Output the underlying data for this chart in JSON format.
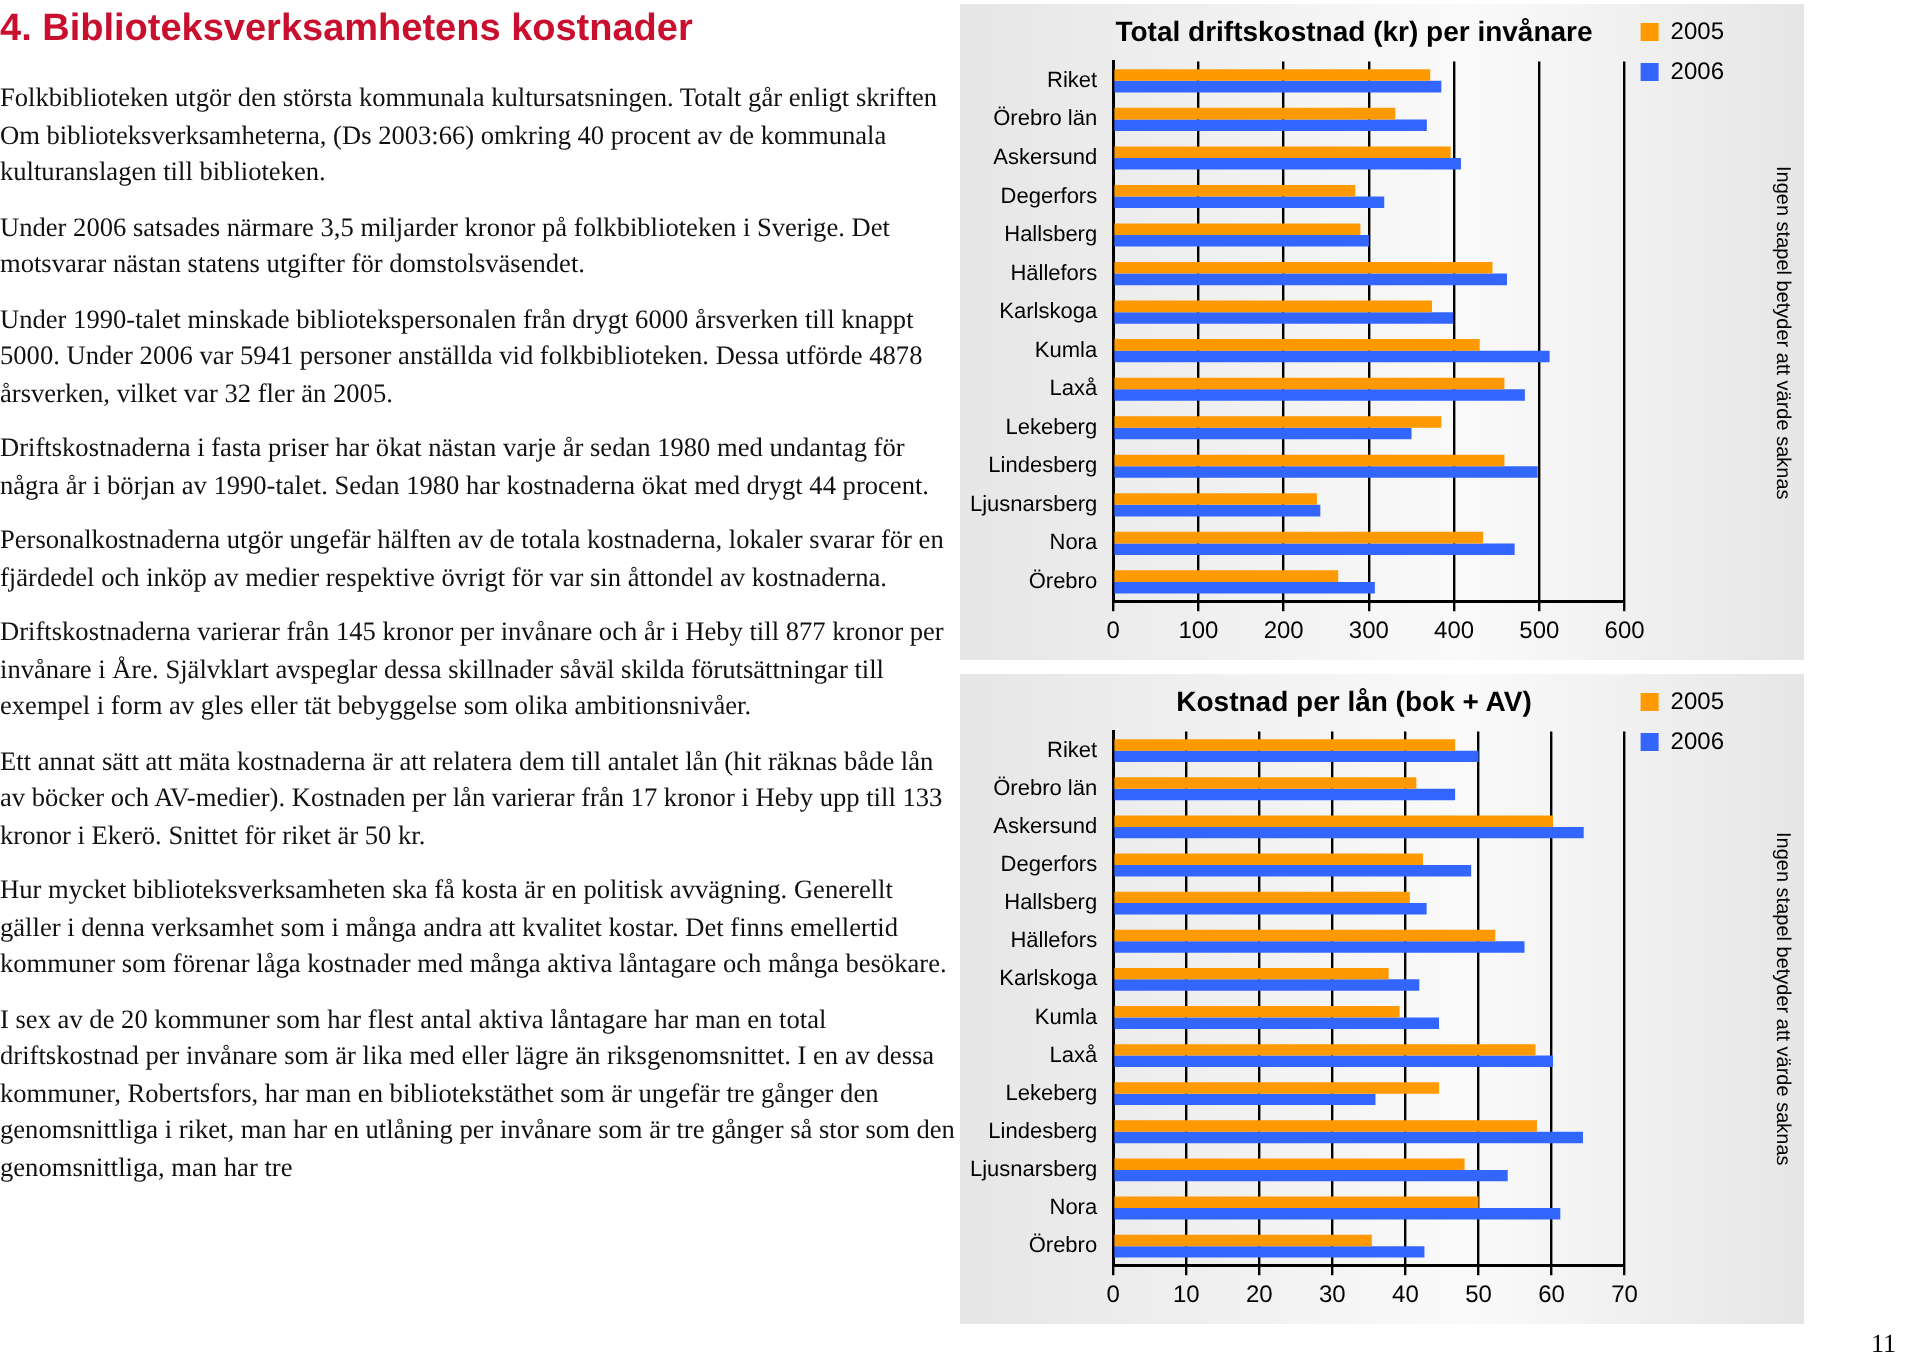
{
  "chart_data": [
    {
      "type": "other",
      "title": "4. Biblioteksverksamhetens kostnader",
      "annotations": [
        "Folkbiblioteken utgör den största kommunala kultursatsningen. Totalt går enligt skriften Om biblioteksverksamheterna, (Ds 2003:66) omkring 40 procent av de kommunala kulturanslagen till biblioteken.",
        "Under 2006 satsades närmare 3,5 miljarder kronor på folkbiblioteken i Sverige. Det motsvarar nästan statens utgifter för domstolsväsendet.",
        "Under 1990-talet minskade bibliotekspersonalen från drygt 6000 årsverken till knappt 5000. Under 2006 var 5941 personer anställda vid folkbiblioteken. Dessa utförde 4878 årsverken, vilket var 32 fler än 2005.",
        "Driftskostnaderna i fasta priser har ökat nästan varje år sedan 1980 med undantag för några år i början av 1990-talet. Sedan 1980 har kostnaderna ökat med drygt 44 procent.",
        "Personalkostnaderna utgör ungefär hälften av de totala kostnaderna, lokaler svarar för en fjärdedel och inköp av medier respektive övrigt för var sin åttondel av kostnaderna.",
        "Driftskostnaderna varierar från 145 kronor per invånare och år i Heby till 877 kronor per invånare i Åre. Självklart avspeglar dessa skillnader såväl skilda förutsättningar till exempel i form av gles eller tät bebyggelse som olika ambitionsnivåer.",
        "Ett annat sätt att mäta kostnaderna är att relatera dem till antalet lån (hit räknas både lån av böcker och AV-medier). Kostnaden per lån varierar från 17 kronor i Heby upp till 133 kronor i Ekerö. Snittet för riket är 50 kr.",
        "Hur mycket biblioteksverksamheten ska få kosta är en politisk avvägning. Generellt gäller i denna verksamhet som i många andra att kvalitet kostar. Det finns emellertid kommuner som förenar låga kostnader med många aktiva låntagare och många besökare.",
        "I sex av de 20 kommuner som har flest antal aktiva låntagare har man en total driftskostnad per invånare som är lika med eller lägre än riksgenomsnittet.  I en av dessa kommuner, Robertsfors, har man en bibliotekstäthet som är ungefär tre gånger den genomsnittliga i riket, man har en utlåning per invånare som är tre gånger så stor som den genomsnittliga, man har tre",
        "11"
      ]
    },
    {
      "type": "bar",
      "orientation": "horizontal",
      "title": "Total driftskostnad (kr) per invånare",
      "categories": [
        "Riket",
        "Örebro län",
        "Askersund",
        "Degerfors",
        "Hallsberg",
        "Hällefors",
        "Karlskoga",
        "Kumla",
        "Laxå",
        "Lekeberg",
        "Lindesberg",
        "Ljusnarsberg",
        "Nora",
        "Örebro"
      ],
      "series": [
        {
          "name": "2005",
          "color": "#ff9900",
          "values": [
            372,
            331,
            396,
            284,
            290,
            445,
            374,
            430,
            459,
            385,
            459,
            239,
            434,
            264
          ]
        },
        {
          "name": "2006",
          "color": "#3366ff",
          "values": [
            385,
            368,
            408,
            318,
            300,
            462,
            399,
            512,
            483,
            350,
            498,
            243,
            471,
            307
          ]
        }
      ],
      "xlim": [
        0,
        600
      ],
      "xticks": [
        0,
        100,
        200,
        300,
        400,
        500,
        600
      ],
      "grid": "x",
      "legend": "right",
      "annotations": [
        "Ingen stapel betyder att värde saknas"
      ]
    },
    {
      "type": "bar",
      "orientation": "horizontal",
      "title": "Kostnad per lån (bok + AV)",
      "categories": [
        "Riket",
        "Örebro län",
        "Askersund",
        "Degerfors",
        "Hallsberg",
        "Hällefors",
        "Karlskoga",
        "Kumla",
        "Laxå",
        "Lekeberg",
        "Lindesberg",
        "Ljusnarsberg",
        "Nora",
        "Örebro"
      ],
      "series": [
        {
          "name": "2005",
          "color": "#ff9900",
          "values": [
            46.8,
            41.5,
            60.2,
            42.4,
            40.6,
            52.3,
            37.7,
            39.2,
            57.8,
            44.6,
            58,
            48.1,
            50,
            35.4
          ]
        },
        {
          "name": "2006",
          "color": "#3366ff",
          "values": [
            50,
            46.8,
            64.4,
            49,
            42.9,
            56.3,
            41.9,
            44.6,
            60.2,
            35.9,
            64.3,
            54,
            61.2,
            42.6
          ]
        }
      ],
      "xlim": [
        0,
        70
      ],
      "xticks": [
        0,
        10,
        20,
        30,
        40,
        50,
        60,
        70
      ],
      "grid": "x",
      "legend": "right",
      "annotations": [
        "Ingen stapel betyder att värde saknas"
      ]
    }
  ]
}
